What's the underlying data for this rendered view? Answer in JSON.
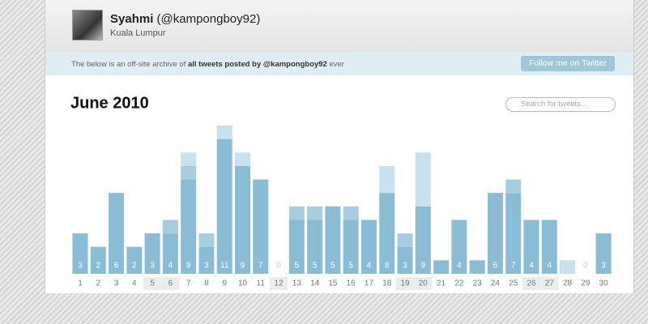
{
  "header": {
    "name": "Syahmi",
    "handle": "(@kampongboy92)",
    "location": "Kuala Lumpur"
  },
  "banner": {
    "text_before": "The below is an off-site archive of",
    "text_bold": "all tweets posted by @kampongboy92",
    "text_after": "ever",
    "button": "Follow me on Twitter"
  },
  "search_placeholder": "Search for tweets...",
  "chart_data": {
    "type": "bar",
    "title": "June 2010",
    "categories": [
      "1",
      "2",
      "3",
      "4",
      "5",
      "6",
      "7",
      "8",
      "9",
      "10",
      "11",
      "12",
      "13",
      "14",
      "15",
      "16",
      "17",
      "18",
      "19",
      "20",
      "21",
      "22",
      "23",
      "24",
      "25",
      "26",
      "27",
      "28",
      "29",
      "30"
    ],
    "series": [
      {
        "color": "#8bbcd6",
        "values": [
          3,
          2,
          6,
          2,
          3,
          3,
          7,
          2,
          10,
          8,
          7,
          0,
          4,
          4,
          5,
          4,
          4,
          6,
          2,
          5,
          1,
          4,
          1,
          6,
          6,
          4,
          4,
          0,
          0,
          3
        ]
      },
      {
        "color": "#a8cde1",
        "values": [
          0,
          0,
          0,
          0,
          0,
          1,
          1,
          1,
          0,
          0,
          0,
          0,
          1,
          1,
          0,
          1,
          0,
          0,
          1,
          0,
          0,
          0,
          0,
          0,
          1,
          0,
          0,
          0,
          0,
          0
        ]
      },
      {
        "color": "#c7e1ee",
        "values": [
          0,
          0,
          0,
          0,
          0,
          0,
          1,
          0,
          1,
          1,
          0,
          0,
          0,
          0,
          0,
          0,
          0,
          2,
          0,
          4,
          0,
          0,
          0,
          0,
          0,
          0,
          0,
          1,
          0,
          0
        ]
      }
    ],
    "value_labels": [
      3,
      2,
      6,
      2,
      3,
      4,
      9,
      3,
      11,
      9,
      7,
      0,
      5,
      5,
      5,
      5,
      4,
      8,
      3,
      9,
      null,
      4,
      null,
      6,
      7,
      4,
      4,
      null,
      0,
      3
    ],
    "ylim": [
      0,
      11
    ],
    "stacked": true
  }
}
